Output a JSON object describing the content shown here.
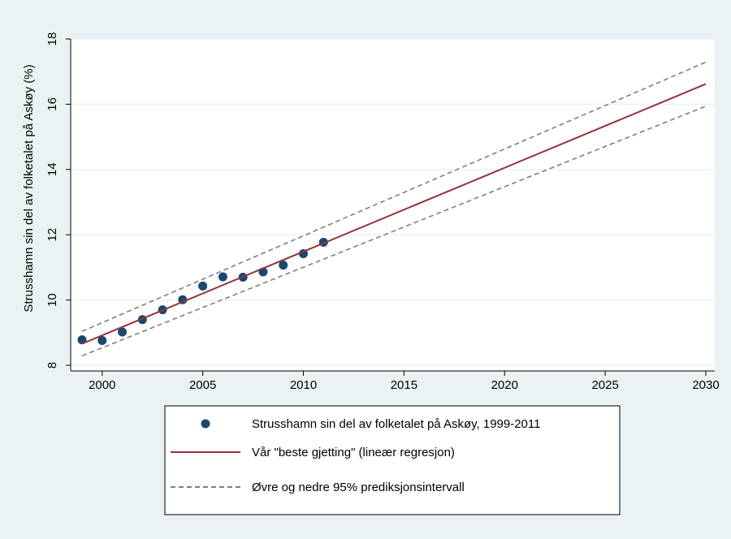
{
  "chart_data": {
    "type": "line",
    "title": "",
    "xlabel": "",
    "ylabel": "Strusshamn sin del av folketalet på Askøy (%)",
    "xlim": [
      1999,
      2030
    ],
    "ylim": [
      8,
      18
    ],
    "x_ticks": [
      2000,
      2005,
      2010,
      2015,
      2020,
      2025,
      2030
    ],
    "y_ticks": [
      8,
      10,
      12,
      14,
      16,
      18
    ],
    "grid": true,
    "legend_position": "bottom",
    "series": [
      {
        "name": "Strusshamn sin del av folketalet på Askøy, 1999-2011",
        "kind": "scatter",
        "color": "#1a476f",
        "x": [
          1999,
          2000,
          2001,
          2002,
          2003,
          2004,
          2005,
          2006,
          2007,
          2008,
          2009,
          2010,
          2011
        ],
        "y": [
          8.78,
          8.76,
          9.02,
          9.4,
          9.7,
          10.01,
          10.43,
          10.71,
          10.7,
          10.86,
          11.07,
          11.42,
          11.77
        ]
      },
      {
        "name": "Vår \"beste gjetting\" (lineær regresjon)",
        "kind": "line",
        "color": "#90353b",
        "x": [
          1999,
          2030
        ],
        "y": [
          8.66,
          16.62
        ]
      },
      {
        "name": "Øvre og nedre 95% prediksjonsintervall",
        "kind": "dashed",
        "color": "#7f7f7f",
        "x": [
          1999,
          2030
        ],
        "y": [
          9.04,
          17.29
        ]
      },
      {
        "name": "",
        "kind": "dashed",
        "color": "#7f7f7f",
        "x": [
          1999,
          2030
        ],
        "y": [
          8.29,
          15.94
        ]
      }
    ]
  }
}
